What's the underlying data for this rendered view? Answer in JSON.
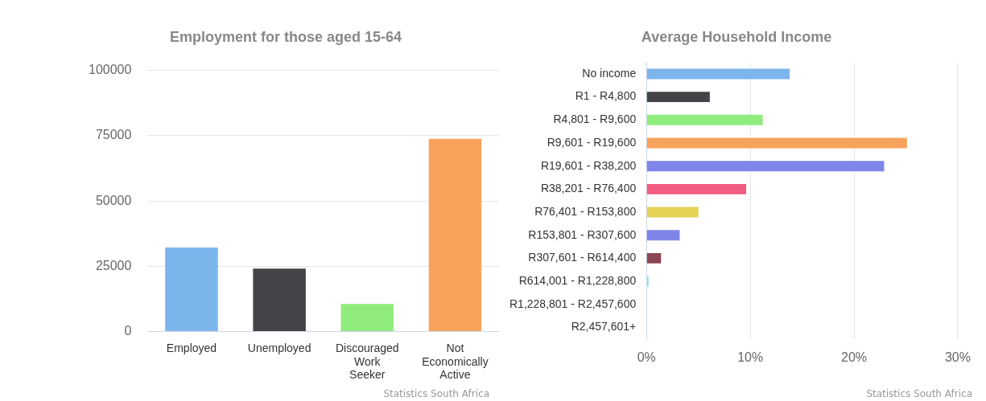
{
  "chart_data": [
    {
      "type": "bar",
      "title": "Employment for those aged 15-64",
      "categories": [
        "Employed",
        "Unemployed",
        "Discouraged Work Seeker",
        "Not Economically Active"
      ],
      "values": [
        32200,
        24100,
        10600,
        73800
      ],
      "colors": [
        "#7cb5ec",
        "#434348",
        "#90ed7d",
        "#f7a35c"
      ],
      "ylim": [
        0,
        100000
      ],
      "yticks": [
        0,
        25000,
        50000,
        75000,
        100000
      ],
      "grid": "y",
      "annotations": [
        "Statistics South Africa"
      ]
    },
    {
      "type": "bar",
      "orientation": "horizontal",
      "title": "Average Household Income",
      "categories": [
        "No income",
        "R1 - R4,800",
        "R4,801 - R9,600",
        "R9,601 - R19,600",
        "R19,601 - R38,200",
        "R38,201 - R76,400",
        "R76,401 - R153,800",
        "R153,801 - R307,600",
        "R307,601 - R614,400",
        "R614,001 - R1,228,800",
        "R1,228,801 - R2,457,600",
        "R2,457,601+"
      ],
      "values": [
        13.8,
        6.1,
        11.2,
        25.1,
        22.9,
        9.6,
        5.0,
        3.2,
        1.4,
        0.2,
        0,
        0
      ],
      "colors": [
        "#7cb5ec",
        "#434348",
        "#90ed7d",
        "#f7a35c",
        "#8085e9",
        "#f15c80",
        "#e4d354",
        "#8085e8",
        "#8d4653",
        "#91e8e1",
        "#7cb5ec",
        "#434348"
      ],
      "xlim": [
        0,
        30
      ],
      "xticks": [
        {
          "value": 0,
          "label": "0%"
        },
        {
          "value": 10,
          "label": "10%"
        },
        {
          "value": 20,
          "label": "20%"
        },
        {
          "value": 30,
          "label": "30%"
        }
      ],
      "grid": "x",
      "annotations": [
        "Statistics South Africa"
      ]
    }
  ]
}
